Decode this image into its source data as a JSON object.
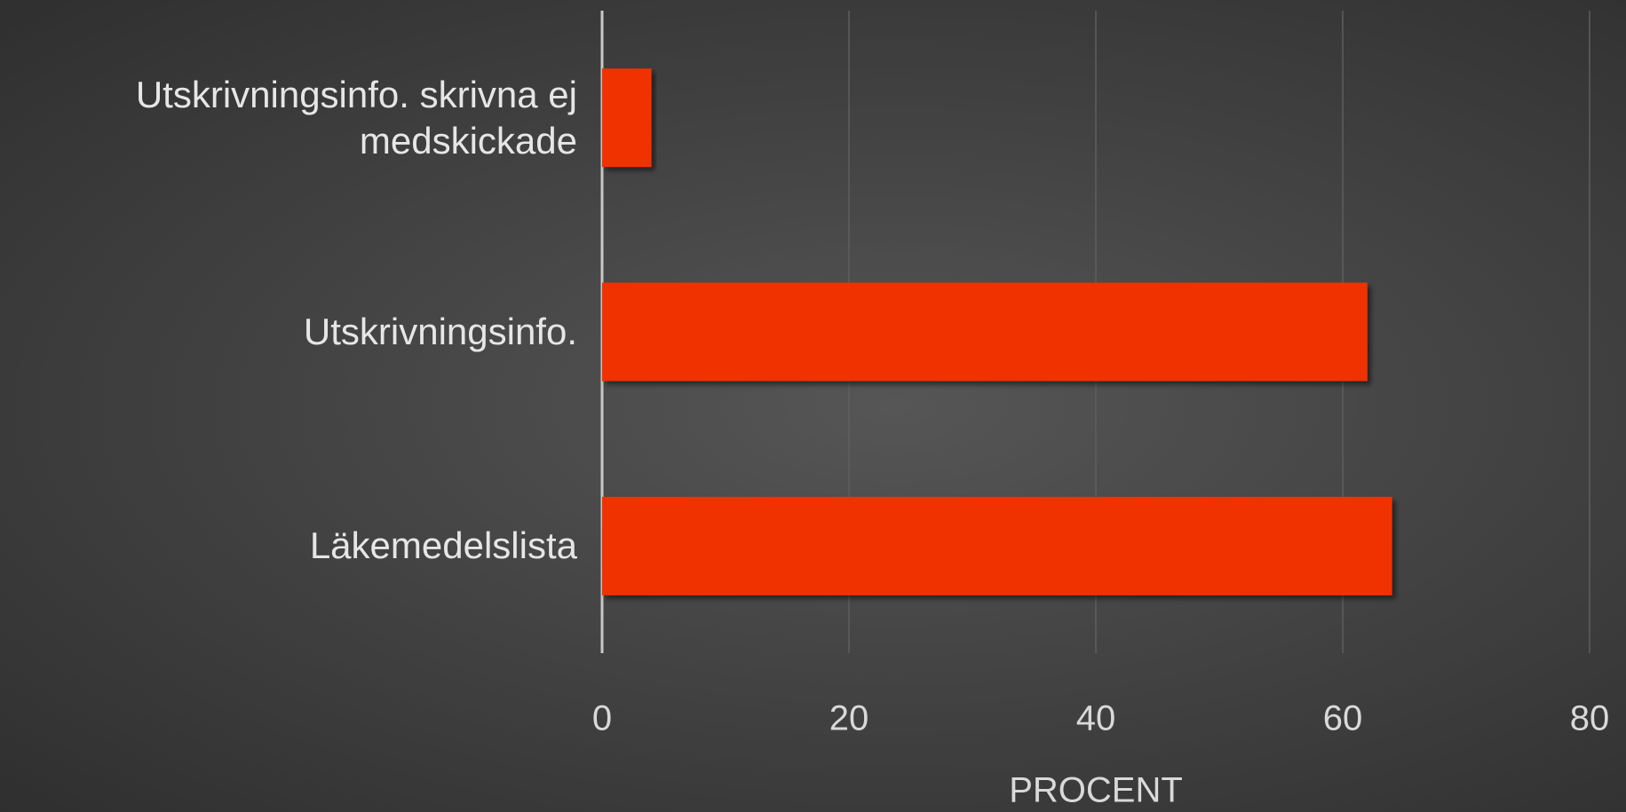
{
  "chart_data": {
    "type": "bar",
    "orientation": "horizontal",
    "categories": [
      "Utskrivningsinfo. skrivna ej medskickade",
      "Utskrivningsinfo.",
      "Läkemedelslista"
    ],
    "values": [
      4,
      62,
      64
    ],
    "color": "#f03000",
    "xlim": [
      0,
      80
    ],
    "xticks": [
      0,
      20,
      40,
      60,
      80
    ],
    "xlabel": "PROCENT",
    "grid": true
  }
}
